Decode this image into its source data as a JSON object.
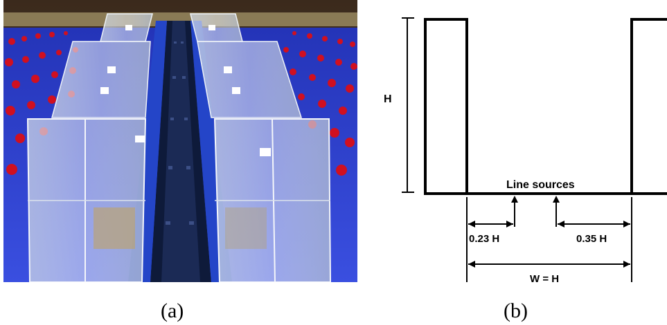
{
  "panel_a": {
    "caption": "(a)"
  },
  "panel_b": {
    "caption": "(b)",
    "labels": {
      "height": "H",
      "line_sources": "Line sources",
      "left_source_distance": "0.23 H",
      "right_source_distance": "0.35 H",
      "width": "W = H"
    }
  },
  "colors": {
    "floor_blue": "#2f3fd0",
    "roughness_red": "#d01020",
    "center_channel": "#0e1a3a",
    "line": "#000000"
  }
}
